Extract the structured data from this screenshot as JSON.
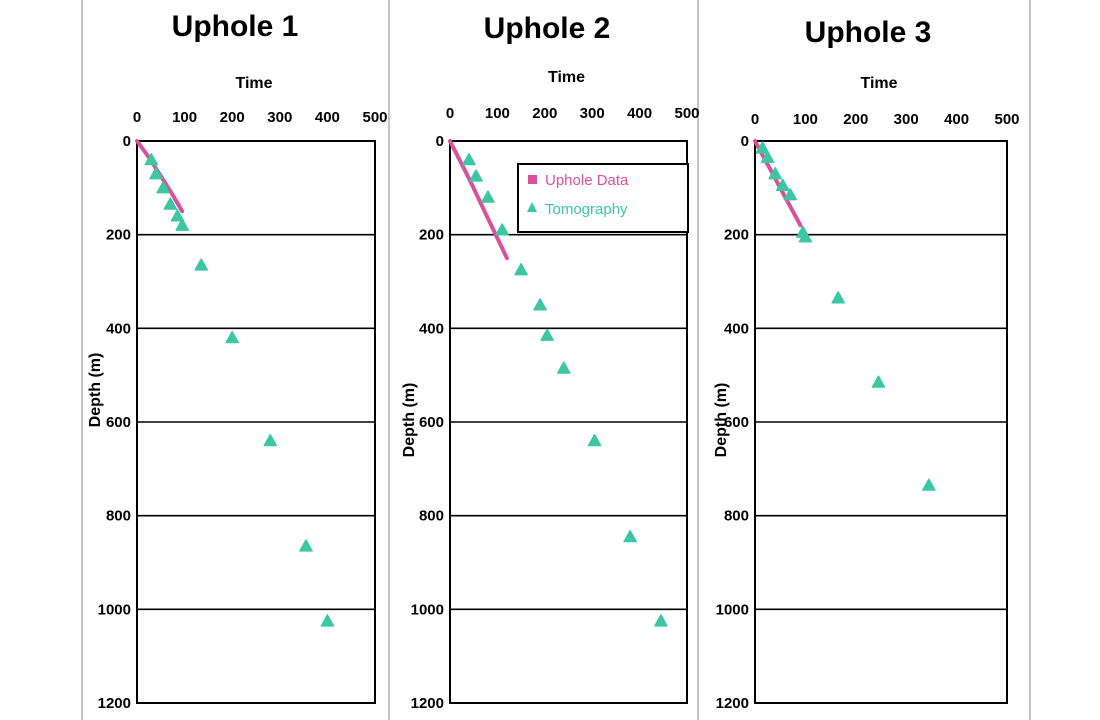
{
  "colors": {
    "uphole": "#d9509b",
    "tomography": "#3cc6a2",
    "frame": "#000000",
    "divider": "#c4c4c4"
  },
  "legend": {
    "uphole_label": "Uphole Data",
    "tomography_label": "Tomography"
  },
  "chart_data": [
    {
      "type": "scatter",
      "title": "Uphole 1",
      "xlabel": "Time",
      "ylabel": "Depth (m)",
      "xlim": [
        0,
        500
      ],
      "ylim": [
        0,
        1200
      ],
      "y_inverted": true,
      "x_ticks": [
        0,
        100,
        200,
        300,
        400,
        500
      ],
      "y_ticks": [
        0,
        200,
        400,
        600,
        800,
        1000,
        1200
      ],
      "grid": "horizontal",
      "series": [
        {
          "name": "Uphole Data",
          "kind": "line",
          "x": [
            0,
            25,
            50,
            75,
            95
          ],
          "y": [
            0,
            35,
            75,
            115,
            150
          ]
        },
        {
          "name": "Tomography",
          "kind": "markers",
          "x": [
            30,
            40,
            55,
            70,
            85,
            95,
            135,
            200,
            280,
            355,
            400
          ],
          "y": [
            40,
            70,
            100,
            135,
            160,
            180,
            265,
            420,
            640,
            865,
            1025
          ]
        }
      ]
    },
    {
      "type": "scatter",
      "title": "Uphole 2",
      "xlabel": "Time",
      "ylabel": "Depth (m)",
      "xlim": [
        0,
        500
      ],
      "ylim": [
        0,
        1200
      ],
      "y_inverted": true,
      "x_ticks": [
        0,
        100,
        200,
        300,
        400,
        500
      ],
      "y_ticks": [
        0,
        200,
        400,
        600,
        800,
        1000,
        1200
      ],
      "grid": "horizontal",
      "legend_position": "top-right",
      "series": [
        {
          "name": "Uphole Data",
          "kind": "line",
          "x": [
            0,
            40,
            80,
            120
          ],
          "y": [
            0,
            80,
            165,
            250
          ]
        },
        {
          "name": "Tomography",
          "kind": "markers",
          "x": [
            40,
            55,
            80,
            110,
            150,
            190,
            205,
            240,
            305,
            380,
            445
          ],
          "y": [
            40,
            75,
            120,
            190,
            275,
            350,
            415,
            485,
            640,
            845,
            1025
          ]
        }
      ]
    },
    {
      "type": "scatter",
      "title": "Uphole 3",
      "xlabel": "Time",
      "ylabel": "Depth (m)",
      "xlim": [
        0,
        500
      ],
      "ylim": [
        0,
        1200
      ],
      "y_inverted": true,
      "x_ticks": [
        0,
        100,
        200,
        300,
        400,
        500
      ],
      "y_ticks": [
        0,
        200,
        400,
        600,
        800,
        1000,
        1200
      ],
      "grid": "horizontal",
      "series": [
        {
          "name": "Uphole Data",
          "kind": "line",
          "x": [
            0,
            30,
            60,
            90
          ],
          "y": [
            0,
            60,
            120,
            180
          ]
        },
        {
          "name": "Tomography",
          "kind": "markers",
          "x": [
            15,
            25,
            40,
            55,
            70,
            95,
            100,
            165,
            245,
            345
          ],
          "y": [
            15,
            35,
            70,
            95,
            115,
            195,
            205,
            335,
            515,
            735
          ]
        }
      ]
    }
  ]
}
